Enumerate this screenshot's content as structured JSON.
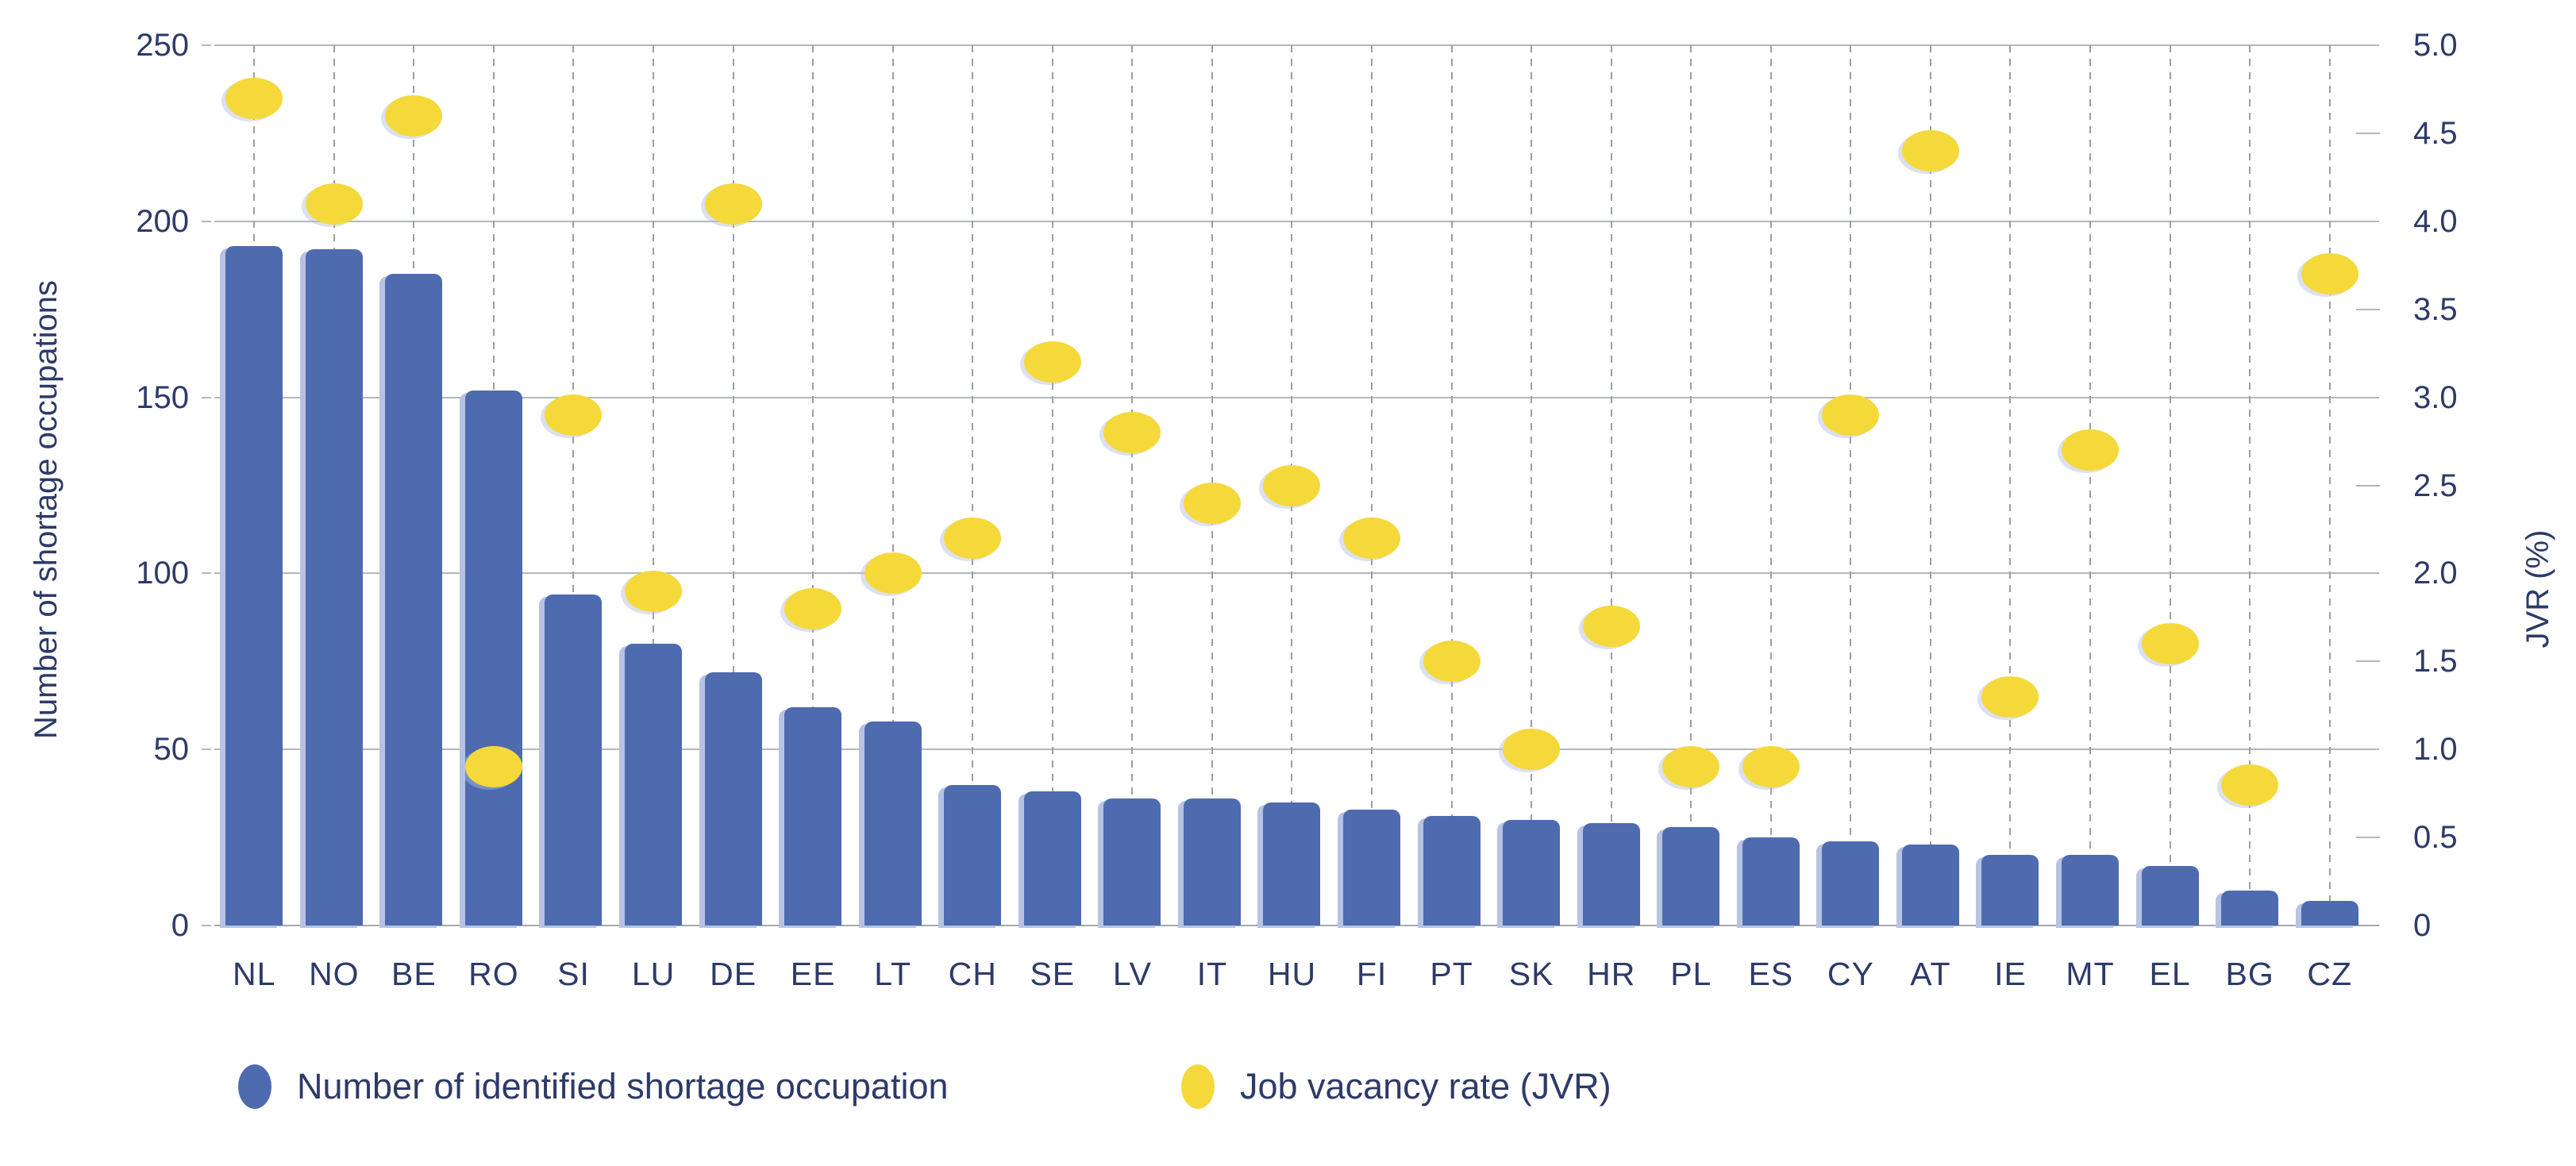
{
  "chart_data": {
    "type": "bar",
    "title": "",
    "categories": [
      "NL",
      "NO",
      "BE",
      "RO",
      "SI",
      "LU",
      "DE",
      "EE",
      "LT",
      "CH",
      "SE",
      "LV",
      "IT",
      "HU",
      "FI",
      "PT",
      "SK",
      "HR",
      "PL",
      "ES",
      "CY",
      "AT",
      "IE",
      "MT",
      "EL",
      "BG",
      "CZ"
    ],
    "series": [
      {
        "name": "Number of identified shortage occupation",
        "type": "bar",
        "axis": "left",
        "color": "#4e6bb0",
        "values": [
          193,
          192,
          185,
          152,
          94,
          80,
          72,
          62,
          58,
          40,
          38,
          36,
          36,
          35,
          33,
          31,
          30,
          29,
          28,
          25,
          24,
          23,
          20,
          20,
          17,
          10,
          7
        ]
      },
      {
        "name": "Job vacancy rate (JVR)",
        "type": "scatter",
        "axis": "right",
        "color": "#f5d93b",
        "values": [
          4.7,
          4.1,
          4.6,
          0.9,
          2.9,
          1.9,
          4.1,
          1.8,
          2.0,
          2.2,
          3.2,
          2.8,
          2.4,
          2.5,
          2.2,
          1.5,
          1.0,
          1.7,
          0.9,
          0.9,
          2.9,
          4.4,
          1.3,
          2.7,
          1.6,
          0.8,
          3.7
        ]
      }
    ],
    "left_axis": {
      "label": "Number of shortage occupations",
      "ticks": [
        0,
        50,
        100,
        150,
        200,
        250
      ],
      "range": [
        0,
        250
      ]
    },
    "right_axis": {
      "label": "JVR (%)",
      "ticks": [
        "0",
        "0.5",
        "1.0",
        "1.5",
        "2.0",
        "2.5",
        "3.0",
        "3.5",
        "4.0",
        "4.5",
        "5.0"
      ],
      "range": [
        0,
        5
      ]
    },
    "grid": "horizontal solid major gridlines; vertical dashed guide per category",
    "legend_position": "bottom"
  },
  "legend": {
    "items": [
      {
        "label": "Number of identified shortage occupation",
        "color": "#4e6bb0"
      },
      {
        "label": "Job vacancy rate (JVR)",
        "color": "#f5d93b"
      }
    ]
  },
  "colors": {
    "bar": "#4e6bb0",
    "dot": "#f5d93b",
    "text": "#2e3a68",
    "gridline": "#b3b7bd",
    "guide_dash": "#9b9fa4",
    "background": "#ffffff"
  }
}
